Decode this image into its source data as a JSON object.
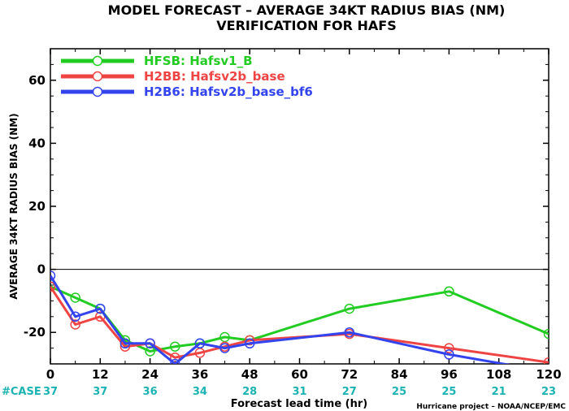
{
  "chart_data": {
    "type": "line",
    "title_line1": "MODEL FORECAST – AVERAGE 34KT RADIUS BIAS (NM)",
    "title_line2": "VERIFICATION FOR HAFS",
    "xlabel": "Forecast lead time (hr)",
    "ylabel": "AVERAGE 34KT RADIUS BIAS (NM)",
    "xlim": [
      0,
      120
    ],
    "ylim": [
      -30,
      70
    ],
    "x_ticks": [
      0,
      12,
      24,
      36,
      48,
      60,
      72,
      84,
      96,
      108,
      120
    ],
    "y_ticks": [
      -20,
      0,
      20,
      40,
      60
    ],
    "zero_line": true,
    "case_label": "#CASE",
    "case_counts": [
      37,
      37,
      36,
      34,
      28,
      31,
      27,
      25,
      25,
      21,
      23
    ],
    "credit": "Hurricane project – NOAA/NCEP/EMC",
    "legend_position": "top-left",
    "series": [
      {
        "id": "HFSB",
        "name": "HFSB: Hafsv1_B",
        "color": "#22cc22",
        "x": [
          0,
          6,
          12,
          18,
          24,
          30,
          36,
          42,
          48,
          72,
          96,
          120
        ],
        "y": [
          -5.5,
          -9,
          -12.5,
          -22.5,
          -26,
          -24.5,
          -23.5,
          -21.5,
          -22.5,
          -12.5,
          -7,
          -20.5
        ]
      },
      {
        "id": "H2BB",
        "name": "H2BB: Hafsv2b_base",
        "color": "#ee4444",
        "x": [
          0,
          6,
          12,
          18,
          24,
          30,
          36,
          42,
          48,
          72,
          96,
          120
        ],
        "y": [
          -5.5,
          -17.5,
          -15,
          -24.5,
          -23.5,
          -28,
          -26.5,
          -24.5,
          -22.5,
          -20.5,
          -25,
          -29.5
        ]
      },
      {
        "id": "H2B6",
        "name": "H2B6: Hafsv2b_base_bf6",
        "color": "#3344ee",
        "x": [
          0,
          6,
          12,
          18,
          24,
          30,
          36,
          42,
          48,
          72,
          96,
          120
        ],
        "y": [
          -2,
          -15,
          -12.5,
          -23.5,
          -23.5,
          -30,
          -23.5,
          -25,
          -23.5,
          -20,
          -27,
          -32.5
        ]
      }
    ]
  }
}
